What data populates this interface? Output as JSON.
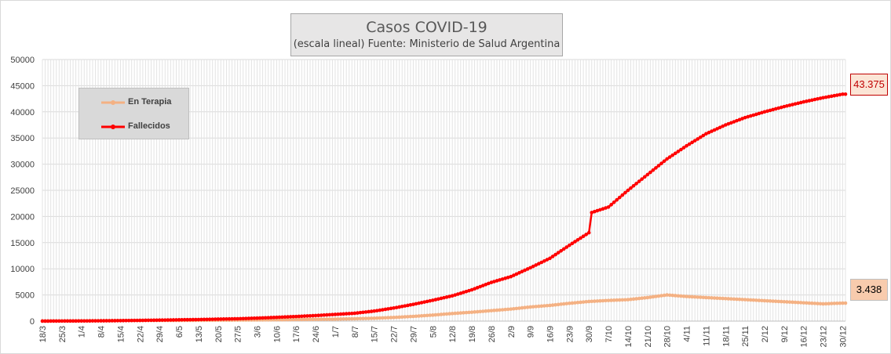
{
  "chart_data": {
    "type": "line",
    "title": "Casos COVID-19",
    "subtitle": "(escala lineal) Fuente: Ministerio de Salud Argentina",
    "ylim": [
      0,
      50000
    ],
    "yticks": [
      "0",
      "5000",
      "10000",
      "15000",
      "20000",
      "25000",
      "30000",
      "35000",
      "40000",
      "45000",
      "50000"
    ],
    "x_tick_labels": [
      "18/3",
      "25/3",
      "1/4",
      "8/4",
      "15/4",
      "22/4",
      "29/4",
      "6/5",
      "13/5",
      "20/5",
      "27/5",
      "3/6",
      "10/6",
      "17/6",
      "24/6",
      "1/7",
      "8/7",
      "15/7",
      "22/7",
      "29/7",
      "5/8",
      "12/8",
      "19/8",
      "26/8",
      "2/9",
      "9/9",
      "16/9",
      "23/9",
      "30/9",
      "7/10",
      "14/10",
      "21/10",
      "28/10",
      "4/11",
      "11/11",
      "18/11",
      "25/11",
      "2/12",
      "9/12",
      "16/12",
      "23/12",
      "30/12"
    ],
    "grid": true,
    "legend_position": "top-left",
    "series": [
      {
        "name": "En Terapia",
        "color": "#f4b183",
        "end_label": "3.438",
        "weekly_values": [
          10,
          30,
          45,
          70,
          100,
          120,
          130,
          140,
          160,
          180,
          200,
          230,
          260,
          300,
          340,
          380,
          450,
          550,
          700,
          900,
          1150,
          1450,
          1700,
          2000,
          2300,
          2700,
          3000,
          3400,
          3750,
          3950,
          4100,
          4500,
          5000,
          4700,
          4500,
          4300,
          4100,
          3900,
          3700,
          3500,
          3300,
          3438
        ]
      },
      {
        "name": "Fallecidos",
        "color": "#ff0000",
        "end_label": "43.375",
        "weekly_values": [
          2,
          20,
          30,
          60,
          90,
          140,
          190,
          250,
          300,
          380,
          450,
          570,
          720,
          880,
          1060,
          1280,
          1500,
          1920,
          2500,
          3200,
          3980,
          4830,
          5980,
          7400,
          8500,
          10200,
          12000,
          14500,
          16900,
          21800,
          25000,
          28000,
          31000,
          33500,
          35800,
          37500,
          38900,
          40000,
          41000,
          41900,
          42700,
          43375
        ]
      }
    ]
  }
}
